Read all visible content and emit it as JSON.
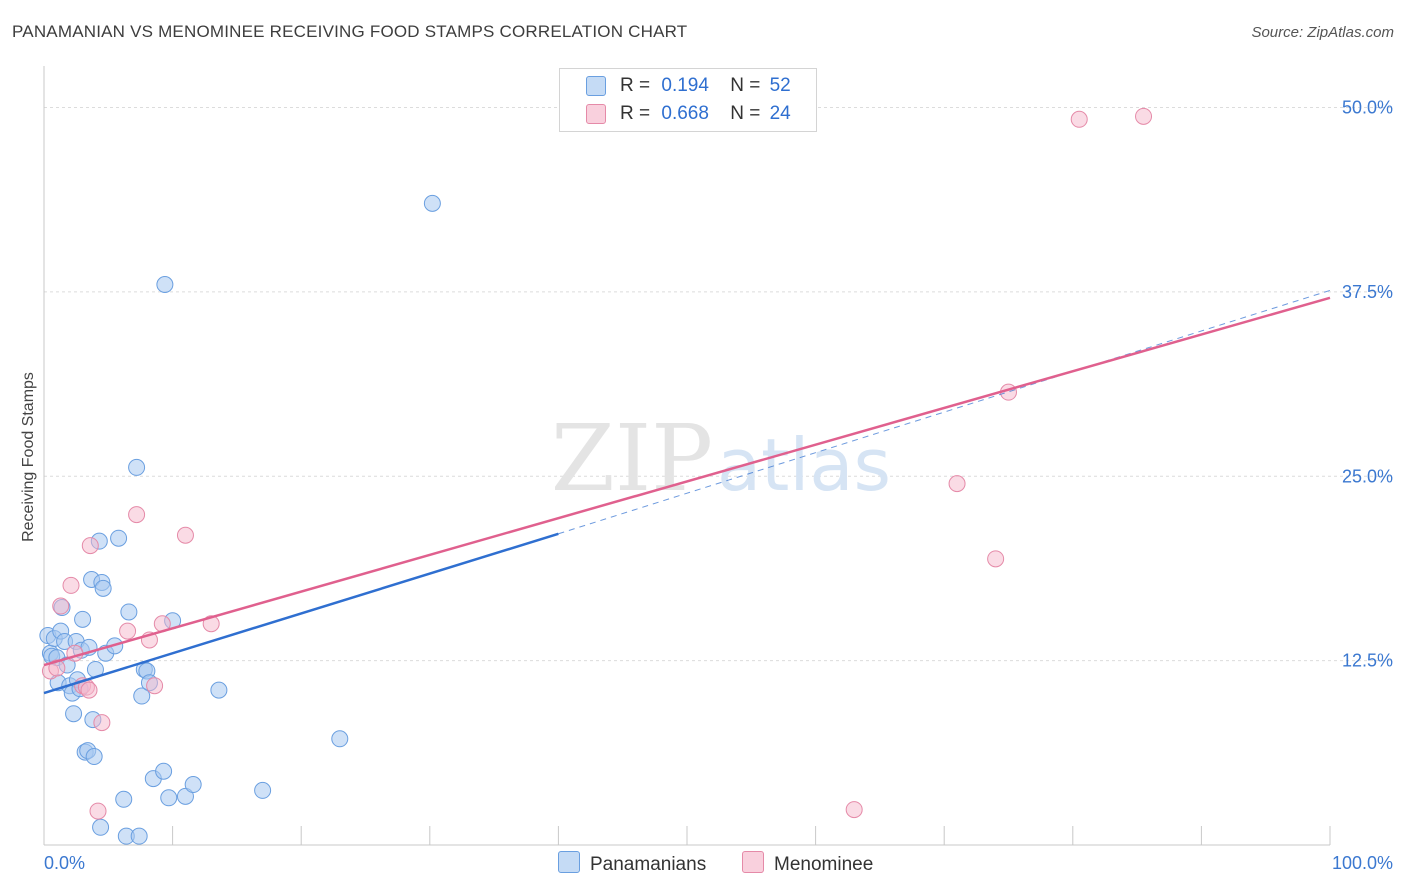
{
  "header": {
    "title": "PANAMANIAN VS MENOMINEE RECEIVING FOOD STAMPS CORRELATION CHART",
    "source": "Source: ZipAtlas.com"
  },
  "legend": {
    "series1": {
      "r_label": "R =",
      "r_value": "0.194",
      "n_label": "N =",
      "n_value": "52"
    },
    "series2": {
      "r_label": "R =",
      "r_value": "0.668",
      "n_label": "N =",
      "n_value": "24"
    }
  },
  "bottom_legend": {
    "series1": "Panamanians",
    "series2": "Menominee"
  },
  "watermark": {
    "zip": "ZIP",
    "atlas": "atlas"
  },
  "colors": {
    "blue_fill": "#a8c8f0",
    "blue_stroke": "#6a9fe0",
    "blue_line": "#2f6fd0",
    "pink_fill": "#f5b8cc",
    "pink_stroke": "#e58aa8",
    "pink_line": "#e0608e",
    "tick_label": "#3b78d0",
    "grid": "#dcdcdc"
  },
  "chart_data": {
    "type": "scatter",
    "title": "PANAMANIAN VS MENOMINEE RECEIVING FOOD STAMPS CORRELATION CHART",
    "xlabel": "",
    "ylabel": "Receiving Food Stamps",
    "xlim": [
      0,
      100
    ],
    "ylim": [
      0,
      52
    ],
    "x_tick_labels": [
      "0.0%",
      "100.0%"
    ],
    "y_ticks": [
      12.5,
      25.0,
      37.5,
      50.0
    ],
    "y_tick_labels": [
      "12.5%",
      "25.0%",
      "37.5%",
      "50.0%"
    ],
    "grid": true,
    "legend_position": "top-center",
    "series": [
      {
        "name": "Panamanians",
        "color": "#a8c8f0",
        "r": 0.194,
        "n": 52,
        "trend": {
          "x": [
            0,
            40
          ],
          "y": [
            10.3,
            21.1
          ]
        },
        "trend_extension": {
          "x": [
            40,
            100
          ],
          "y": [
            21.1,
            37.6
          ]
        },
        "points": [
          [
            0.3,
            14.2
          ],
          [
            0.5,
            13.0
          ],
          [
            0.6,
            12.8
          ],
          [
            0.8,
            14.0
          ],
          [
            1.0,
            12.7
          ],
          [
            1.1,
            11.0
          ],
          [
            1.3,
            14.5
          ],
          [
            1.4,
            16.1
          ],
          [
            1.6,
            13.8
          ],
          [
            1.8,
            12.2
          ],
          [
            2.0,
            10.8
          ],
          [
            2.2,
            10.3
          ],
          [
            2.3,
            8.9
          ],
          [
            2.5,
            13.8
          ],
          [
            2.6,
            11.2
          ],
          [
            2.8,
            10.6
          ],
          [
            2.9,
            13.2
          ],
          [
            3.0,
            15.3
          ],
          [
            3.2,
            6.3
          ],
          [
            3.4,
            6.4
          ],
          [
            3.5,
            13.4
          ],
          [
            3.7,
            18.0
          ],
          [
            3.8,
            8.5
          ],
          [
            3.9,
            6.0
          ],
          [
            4.0,
            11.9
          ],
          [
            4.3,
            20.6
          ],
          [
            4.4,
            1.2
          ],
          [
            4.5,
            17.8
          ],
          [
            4.6,
            17.4
          ],
          [
            4.8,
            13.0
          ],
          [
            5.5,
            13.5
          ],
          [
            5.8,
            20.8
          ],
          [
            6.2,
            3.1
          ],
          [
            6.4,
            0.6
          ],
          [
            6.6,
            15.8
          ],
          [
            7.2,
            25.6
          ],
          [
            7.4,
            0.6
          ],
          [
            7.6,
            10.1
          ],
          [
            7.8,
            11.9
          ],
          [
            8.0,
            11.8
          ],
          [
            8.2,
            11.0
          ],
          [
            8.5,
            4.5
          ],
          [
            9.3,
            5.0
          ],
          [
            9.4,
            38.0
          ],
          [
            9.7,
            3.2
          ],
          [
            10.0,
            15.2
          ],
          [
            11.0,
            3.3
          ],
          [
            11.6,
            4.1
          ],
          [
            13.6,
            10.5
          ],
          [
            17.0,
            3.7
          ],
          [
            23.0,
            7.2
          ],
          [
            30.2,
            43.5
          ]
        ]
      },
      {
        "name": "Menominee",
        "color": "#f5b8cc",
        "r": 0.668,
        "n": 24,
        "trend": {
          "x": [
            0,
            100
          ],
          "y": [
            12.2,
            37.1
          ]
        },
        "points": [
          [
            0.5,
            11.8
          ],
          [
            1.0,
            12.0
          ],
          [
            1.3,
            16.2
          ],
          [
            2.1,
            17.6
          ],
          [
            2.4,
            13.0
          ],
          [
            3.0,
            10.8
          ],
          [
            3.3,
            10.7
          ],
          [
            3.5,
            10.5
          ],
          [
            3.6,
            20.3
          ],
          [
            4.2,
            2.3
          ],
          [
            4.5,
            8.3
          ],
          [
            6.5,
            14.5
          ],
          [
            7.2,
            22.4
          ],
          [
            8.2,
            13.9
          ],
          [
            8.6,
            10.8
          ],
          [
            9.2,
            15.0
          ],
          [
            11.0,
            21.0
          ],
          [
            13.0,
            15.0
          ],
          [
            63.0,
            2.4
          ],
          [
            71.0,
            24.5
          ],
          [
            74.0,
            19.4
          ],
          [
            75.0,
            30.7
          ],
          [
            80.5,
            49.2
          ],
          [
            85.5,
            49.4
          ]
        ]
      }
    ]
  }
}
